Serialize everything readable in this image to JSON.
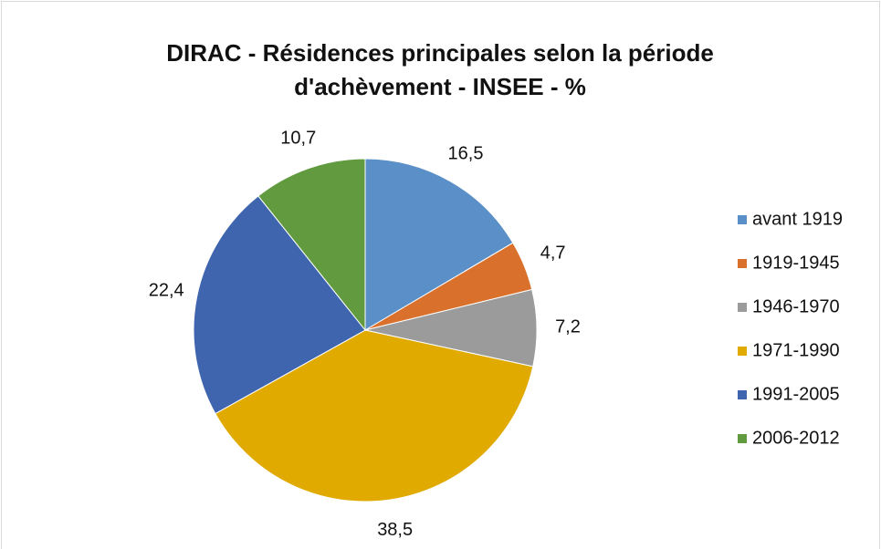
{
  "chart_data": {
    "type": "pie",
    "title": [
      "DIRAC - Résidences principales selon la période",
      "d'achèvement - INSEE  - %"
    ],
    "categories": [
      "avant 1919",
      "1919-1945",
      "1946-1970",
      "1971-1990",
      "1991-2005",
      "2006-2012"
    ],
    "values": [
      16.5,
      4.7,
      7.2,
      38.5,
      22.4,
      10.7
    ],
    "value_labels": [
      "16,5",
      "4,7",
      "7,2",
      "38,5",
      "22,4",
      "10,7"
    ],
    "colors": [
      "#5b8fc7",
      "#d9702c",
      "#9b9b9b",
      "#e1aa00",
      "#3f65ae",
      "#629b3f"
    ],
    "legend": "right"
  }
}
